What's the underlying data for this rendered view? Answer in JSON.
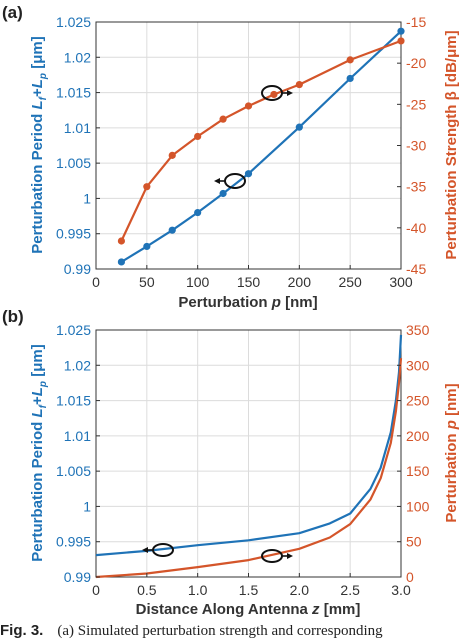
{
  "colors": {
    "blue": "#1f73b7",
    "orange": "#d4552a",
    "axis": "#333333"
  },
  "caption": {
    "prefix": "Fig. 3.",
    "text": "(a) Simulated perturbation strength and corresponding"
  },
  "chart_data": [
    {
      "panel": "(a)",
      "type": "line",
      "xlabel": "Perturbation p [nm]",
      "ylabel_left": "Perturbation Period L_f+L_p [μm]",
      "ylabel_right": "Perturbation Strength β [dB/μm]",
      "xlim": [
        0,
        300
      ],
      "ylim_left": [
        0.99,
        1.025
      ],
      "ylim_right": [
        -45,
        -15
      ],
      "xticks": [
        0,
        50,
        100,
        150,
        200,
        250,
        300
      ],
      "yticks_left": [
        0.99,
        0.995,
        1.0,
        1.005,
        1.01,
        1.015,
        1.02,
        1.025
      ],
      "yticks_left_labels": [
        "0.99",
        "0.995",
        "1",
        "1.005",
        "1.01",
        "1.015",
        "1.02",
        "1.025"
      ],
      "yticks_right": [
        -45,
        -40,
        -35,
        -30,
        -25,
        -20,
        -15
      ],
      "grid": true,
      "markers": true,
      "series": [
        {
          "axis": "left",
          "color": "#1f73b7",
          "x": [
            25,
            50,
            75,
            100,
            125,
            150,
            200,
            250,
            300
          ],
          "y": [
            0.991,
            0.9932,
            0.9955,
            0.998,
            1.0007,
            1.0035,
            1.0101,
            1.017,
            1.0237
          ]
        },
        {
          "axis": "right",
          "color": "#d4552a",
          "x": [
            25,
            50,
            75,
            100,
            125,
            150,
            175,
            200,
            250,
            300
          ],
          "y": [
            -41.6,
            -35.0,
            -31.2,
            -28.9,
            -26.8,
            -25.2,
            -23.8,
            -22.6,
            -19.6,
            -17.3
          ]
        }
      ]
    },
    {
      "panel": "(b)",
      "type": "line",
      "xlabel": "Distance Along Antenna z [mm]",
      "ylabel_left": "Perturbation Period L_f+L_p [μm]",
      "ylabel_right": "Perturbation p [nm]",
      "xlim": [
        0,
        3.0
      ],
      "ylim_left": [
        0.99,
        1.025
      ],
      "ylim_right": [
        0,
        350
      ],
      "xticks": [
        0,
        0.5,
        1.0,
        1.5,
        2.0,
        2.5,
        3.0
      ],
      "xticks_labels": [
        "0",
        "0.5",
        "1.0",
        "1.5",
        "2.0",
        "2.5",
        "3.0"
      ],
      "yticks_left": [
        0.99,
        0.995,
        1.0,
        1.005,
        1.01,
        1.015,
        1.02,
        1.025
      ],
      "yticks_left_labels": [
        "0.99",
        "0.995",
        "1",
        "1.005",
        "1.01",
        "1.015",
        "1.02",
        "1.025"
      ],
      "yticks_right": [
        0,
        50,
        100,
        150,
        200,
        250,
        300,
        350
      ],
      "grid": true,
      "markers": false,
      "series": [
        {
          "axis": "left",
          "color": "#1f73b7",
          "x": [
            0,
            0.5,
            1.0,
            1.5,
            2.0,
            2.3,
            2.5,
            2.7,
            2.8,
            2.9,
            2.95,
            2.98,
            3.0
          ],
          "y": [
            0.9931,
            0.9937,
            0.9945,
            0.9952,
            0.9962,
            0.9976,
            0.999,
            1.0025,
            1.0055,
            1.0105,
            1.015,
            1.019,
            1.0243
          ]
        },
        {
          "axis": "right",
          "color": "#d4552a",
          "x": [
            0,
            0.5,
            1.0,
            1.5,
            2.0,
            2.3,
            2.5,
            2.7,
            2.8,
            2.9,
            2.95,
            2.98,
            3.0
          ],
          "y": [
            0,
            5,
            14,
            24,
            40,
            56,
            75,
            110,
            140,
            190,
            235,
            275,
            310
          ]
        }
      ]
    }
  ]
}
